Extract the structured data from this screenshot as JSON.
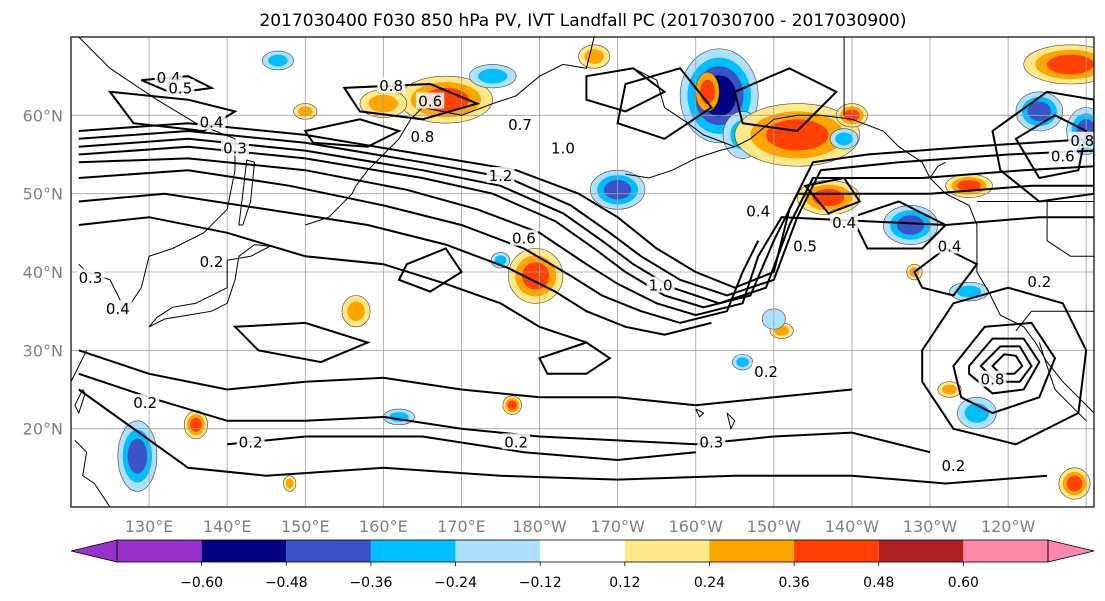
{
  "title": "2017030400 F030 850 hPa PV, IVT Landfall PC (2017030700 - 2017030900)",
  "lat_labels": [
    {
      "text": "60°N",
      "lat": 60
    },
    {
      "text": "50°N",
      "lat": 50
    },
    {
      "text": "40°N",
      "lat": 40
    },
    {
      "text": "30°N",
      "lat": 30
    },
    {
      "text": "20°N",
      "lat": 20
    }
  ],
  "lon_labels": [
    {
      "text": "130°E",
      "lon": 130
    },
    {
      "text": "140°E",
      "lon": 140
    },
    {
      "text": "150°E",
      "lon": 150
    },
    {
      "text": "160°E",
      "lon": 160
    },
    {
      "text": "170°E",
      "lon": 170
    },
    {
      "text": "180°W",
      "lon": 180
    },
    {
      "text": "170°W",
      "lon": 190
    },
    {
      "text": "160°W",
      "lon": 200
    },
    {
      "text": "150°W",
      "lon": 210
    },
    {
      "text": "140°W",
      "lon": 220
    },
    {
      "text": "130°W",
      "lon": 230
    },
    {
      "text": "120°W",
      "lon": 240
    }
  ],
  "map_extent": {
    "lon_min": 120,
    "lon_max": 251,
    "lat_min": 10,
    "lat_max": 70
  },
  "colorbar": {
    "levels": [
      -0.6,
      -0.48,
      -0.36,
      -0.24,
      -0.12,
      0.12,
      0.24,
      0.36,
      0.48,
      0.6
    ],
    "tick_labels": [
      "−0.60",
      "−0.48",
      "−0.36",
      "−0.24",
      "−0.12",
      "0.12",
      "0.24",
      "0.36",
      "0.48",
      "0.60"
    ],
    "colors": [
      "#000080",
      "#3a54c8",
      "#00bfff",
      "#b0e0ff",
      "#ffffff",
      "#ffe888",
      "#ffa500",
      "#ff4000",
      "#b22222"
    ],
    "extend_low_color": "#9932cc",
    "extend_high_color": "#ff88aa"
  },
  "contour_labels": [
    {
      "text": "0.4",
      "lon": 132.5,
      "lat": 64.5
    },
    {
      "text": "0.5",
      "lon": 134,
      "lat": 63.2
    },
    {
      "text": "0.8",
      "lon": 161,
      "lat": 63.5
    },
    {
      "text": "0.6",
      "lon": 166,
      "lat": 61.5
    },
    {
      "text": "0.4",
      "lon": 138,
      "lat": 58.8
    },
    {
      "text": "0.3",
      "lon": 141,
      "lat": 55.5
    },
    {
      "text": "0.8",
      "lon": 165,
      "lat": 57
    },
    {
      "text": "0.7",
      "lon": 177.5,
      "lat": 58.5
    },
    {
      "text": "1.0",
      "lon": 183,
      "lat": 55.5
    },
    {
      "text": "1.2",
      "lon": 175,
      "lat": 52
    },
    {
      "text": "0.4",
      "lon": 208,
      "lat": 47.5
    },
    {
      "text": "0.5",
      "lon": 214,
      "lat": 43
    },
    {
      "text": "0.4",
      "lon": 219,
      "lat": 46
    },
    {
      "text": "0.4",
      "lon": 232.5,
      "lat": 43
    },
    {
      "text": "0.6",
      "lon": 178,
      "lat": 44
    },
    {
      "text": "1.0",
      "lon": 195.5,
      "lat": 38
    },
    {
      "text": "0.2",
      "lon": 138,
      "lat": 41
    },
    {
      "text": "0.4",
      "lon": 126,
      "lat": 35
    },
    {
      "text": "0.2",
      "lon": 129.5,
      "lat": 23
    },
    {
      "text": "0.2",
      "lon": 143,
      "lat": 18
    },
    {
      "text": "0.2",
      "lon": 177,
      "lat": 18
    },
    {
      "text": "0.3",
      "lon": 202,
      "lat": 18
    },
    {
      "text": "0.2",
      "lon": 209,
      "lat": 27
    },
    {
      "text": "0.2",
      "lon": 233,
      "lat": 15
    },
    {
      "text": "0.8",
      "lon": 238,
      "lat": 26
    },
    {
      "text": "0.2",
      "lon": 244,
      "lat": 38.5
    },
    {
      "text": "0.6",
      "lon": 247,
      "lat": 54.5
    },
    {
      "text": "0.8",
      "lon": 249.5,
      "lat": 56.5
    },
    {
      "text": "0.3",
      "lon": 122.5,
      "lat": 39
    }
  ]
}
